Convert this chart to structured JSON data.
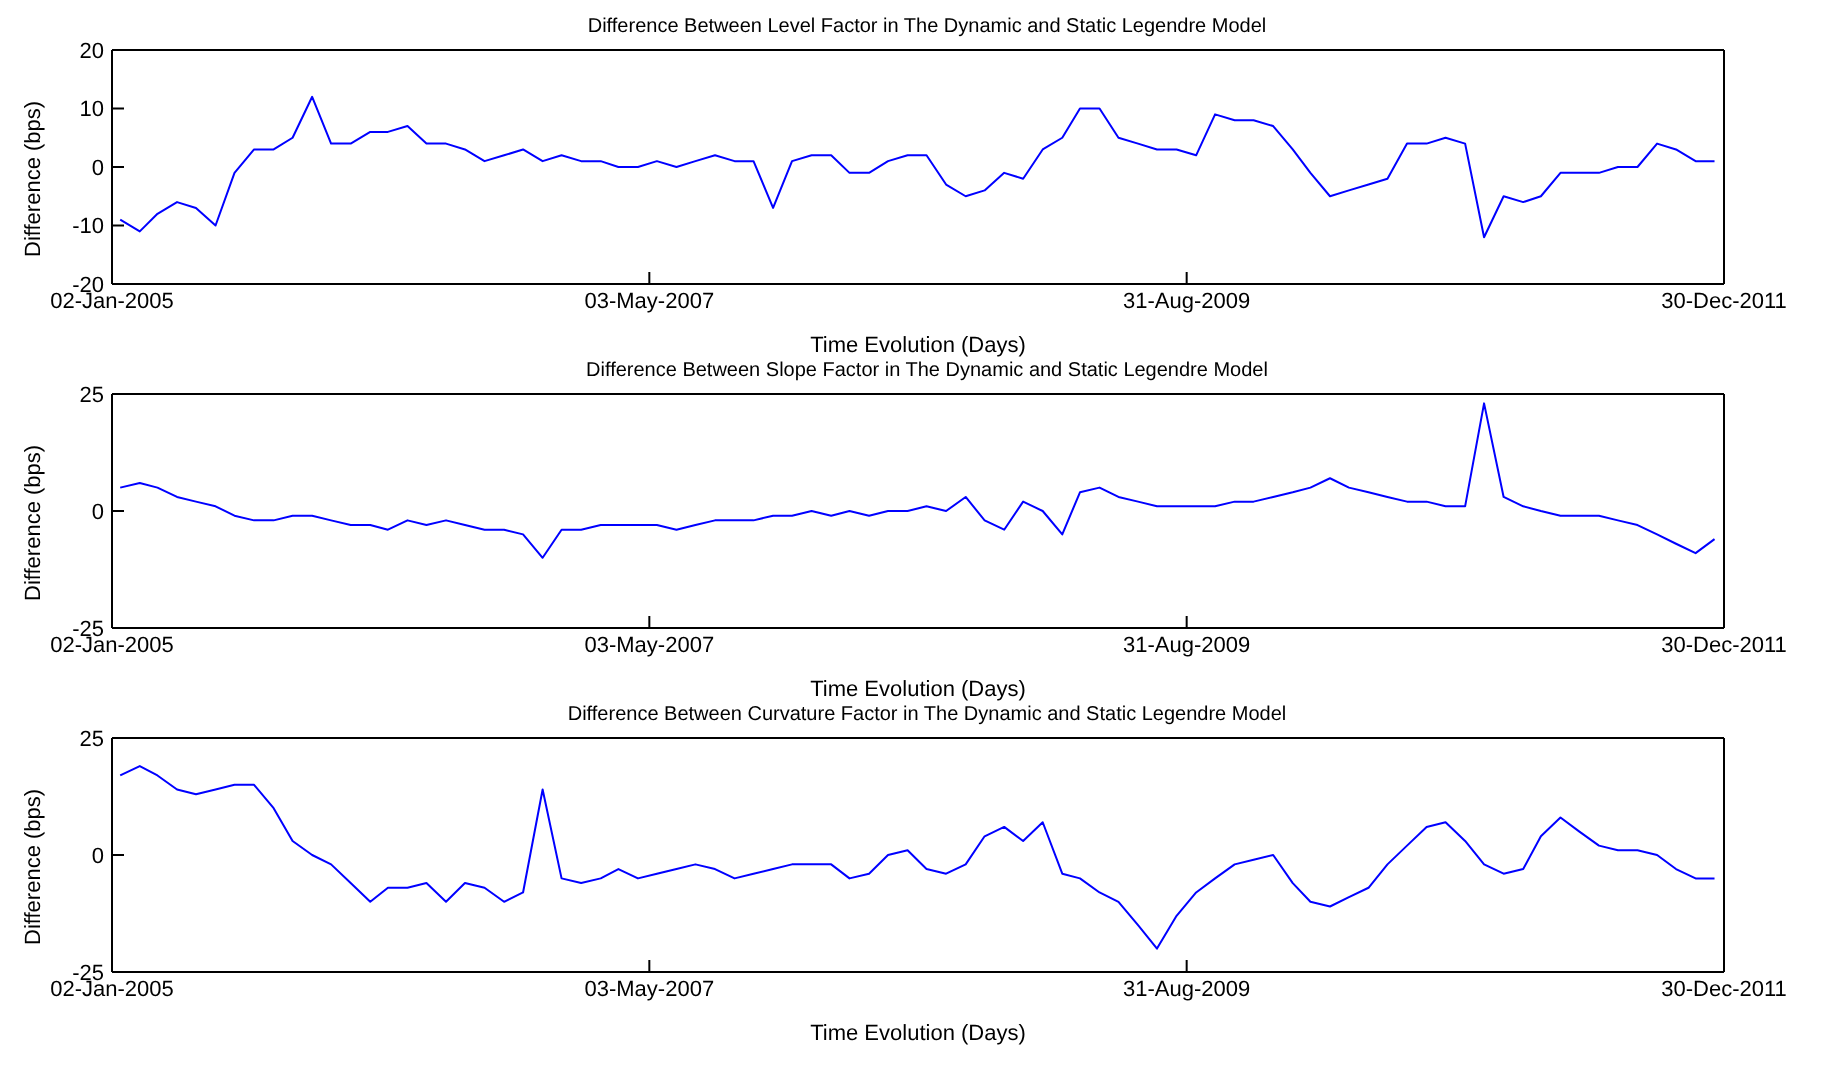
{
  "chart_data": [
    {
      "type": "line",
      "title": "Difference Between Level Factor in The Dynamic and Static Legendre Model",
      "xlabel": "Time Evolution (Days)",
      "ylabel": "Difference (bps)",
      "grid": false,
      "legend": false,
      "marker": "none",
      "line_style": "solid",
      "x": [
        "2005-01-15",
        "2005-02-15",
        "2005-03-15",
        "2005-04-15",
        "2005-05-15",
        "2005-06-15",
        "2005-07-15",
        "2005-08-15",
        "2005-09-15",
        "2005-10-15",
        "2005-11-15",
        "2005-12-15",
        "2006-01-15",
        "2006-02-15",
        "2006-03-15",
        "2006-04-15",
        "2006-05-15",
        "2006-06-15",
        "2006-07-15",
        "2006-08-15",
        "2006-09-15",
        "2006-10-15",
        "2006-11-15",
        "2006-12-15",
        "2007-01-15",
        "2007-02-15",
        "2007-03-15",
        "2007-04-15",
        "2007-05-15",
        "2007-06-15",
        "2007-07-15",
        "2007-08-15",
        "2007-09-15",
        "2007-10-15",
        "2007-11-15",
        "2007-12-15",
        "2008-01-15",
        "2008-02-15",
        "2008-03-15",
        "2008-04-15",
        "2008-05-15",
        "2008-06-15",
        "2008-07-15",
        "2008-08-15",
        "2008-09-15",
        "2008-10-15",
        "2008-11-15",
        "2008-12-15",
        "2009-01-15",
        "2009-02-15",
        "2009-03-15",
        "2009-04-15",
        "2009-05-15",
        "2009-06-15",
        "2009-07-15",
        "2009-08-15",
        "2009-09-15",
        "2009-10-15",
        "2009-11-15",
        "2009-12-15",
        "2010-01-15",
        "2010-02-15",
        "2010-03-15",
        "2010-04-15",
        "2010-05-15",
        "2010-06-15",
        "2010-07-15",
        "2010-08-15",
        "2010-09-15",
        "2010-10-15",
        "2010-11-15",
        "2010-12-15",
        "2011-01-15",
        "2011-02-15",
        "2011-03-15",
        "2011-04-15",
        "2011-05-15",
        "2011-06-15",
        "2011-07-15",
        "2011-08-15",
        "2011-09-15",
        "2011-10-15",
        "2011-11-15",
        "2011-12-15"
      ],
      "series": [
        {
          "color": "#0000ff",
          "values": [
            -9,
            -11,
            -8,
            -6,
            -7,
            -10,
            -1,
            3,
            3,
            5,
            12,
            4,
            4,
            6,
            6,
            7,
            4,
            4,
            3,
            1,
            2,
            3,
            1,
            2,
            1,
            1,
            0,
            0,
            1,
            0,
            1,
            2,
            1,
            1,
            -7,
            1,
            2,
            2,
            -1,
            -1,
            1,
            2,
            2,
            -3,
            -5,
            -4,
            -1,
            -2,
            3,
            5,
            10,
            10,
            5,
            4,
            3,
            3,
            2,
            9,
            8,
            8,
            7,
            3,
            -1,
            -5,
            -4,
            -3,
            -2,
            4,
            4,
            5,
            4,
            -12,
            -5,
            -6,
            -5,
            -1,
            -1,
            -1,
            0,
            0,
            4,
            3,
            1,
            1
          ]
        }
      ],
      "xlim": [
        "2005-01-02",
        "2011-12-30"
      ],
      "xticks": [
        {
          "value": "2005-01-02",
          "label": "02-Jan-2005"
        },
        {
          "value": "2007-05-03",
          "label": "03-May-2007"
        },
        {
          "value": "2009-08-31",
          "label": "31-Aug-2009"
        },
        {
          "value": "2011-12-30",
          "label": "30-Dec-2011"
        }
      ],
      "ylim": [
        -20,
        20
      ],
      "yticks": [
        -20,
        -10,
        0,
        10,
        20
      ]
    },
    {
      "type": "line",
      "title": "Difference Between Slope Factor in The Dynamic and Static Legendre Model",
      "xlabel": "Time Evolution (Days)",
      "ylabel": "Difference (bps)",
      "grid": false,
      "legend": false,
      "marker": "none",
      "line_style": "solid",
      "x": [
        "2005-01-15",
        "2005-02-15",
        "2005-03-15",
        "2005-04-15",
        "2005-05-15",
        "2005-06-15",
        "2005-07-15",
        "2005-08-15",
        "2005-09-15",
        "2005-10-15",
        "2005-11-15",
        "2005-12-15",
        "2006-01-15",
        "2006-02-15",
        "2006-03-15",
        "2006-04-15",
        "2006-05-15",
        "2006-06-15",
        "2006-07-15",
        "2006-08-15",
        "2006-09-15",
        "2006-10-15",
        "2006-11-15",
        "2006-12-15",
        "2007-01-15",
        "2007-02-15",
        "2007-03-15",
        "2007-04-15",
        "2007-05-15",
        "2007-06-15",
        "2007-07-15",
        "2007-08-15",
        "2007-09-15",
        "2007-10-15",
        "2007-11-15",
        "2007-12-15",
        "2008-01-15",
        "2008-02-15",
        "2008-03-15",
        "2008-04-15",
        "2008-05-15",
        "2008-06-15",
        "2008-07-15",
        "2008-08-15",
        "2008-09-15",
        "2008-10-15",
        "2008-11-15",
        "2008-12-15",
        "2009-01-15",
        "2009-02-15",
        "2009-03-15",
        "2009-04-15",
        "2009-05-15",
        "2009-06-15",
        "2009-07-15",
        "2009-08-15",
        "2009-09-15",
        "2009-10-15",
        "2009-11-15",
        "2009-12-15",
        "2010-01-15",
        "2010-02-15",
        "2010-03-15",
        "2010-04-15",
        "2010-05-15",
        "2010-06-15",
        "2010-07-15",
        "2010-08-15",
        "2010-09-15",
        "2010-10-15",
        "2010-11-15",
        "2010-12-15",
        "2011-01-15",
        "2011-02-15",
        "2011-03-15",
        "2011-04-15",
        "2011-05-15",
        "2011-06-15",
        "2011-07-15",
        "2011-08-15",
        "2011-09-15",
        "2011-10-15",
        "2011-11-15",
        "2011-12-15"
      ],
      "series": [
        {
          "color": "#0000ff",
          "values": [
            5,
            6,
            5,
            3,
            2,
            1,
            -1,
            -2,
            -2,
            -1,
            -1,
            -2,
            -3,
            -3,
            -4,
            -2,
            -3,
            -2,
            -3,
            -4,
            -4,
            -5,
            -10,
            -4,
            -4,
            -3,
            -3,
            -3,
            -3,
            -4,
            -3,
            -2,
            -2,
            -2,
            -1,
            -1,
            0,
            -1,
            0,
            -1,
            0,
            0,
            1,
            0,
            3,
            -2,
            -4,
            2,
            0,
            -5,
            4,
            5,
            3,
            2,
            1,
            1,
            1,
            1,
            2,
            2,
            3,
            4,
            5,
            7,
            5,
            4,
            3,
            2,
            2,
            1,
            1,
            23,
            3,
            1,
            0,
            -1,
            -1,
            -1,
            -2,
            -3,
            -5,
            -7,
            -9,
            -6
          ]
        }
      ],
      "xlim": [
        "2005-01-02",
        "2011-12-30"
      ],
      "xticks": [
        {
          "value": "2005-01-02",
          "label": "02-Jan-2005"
        },
        {
          "value": "2007-05-03",
          "label": "03-May-2007"
        },
        {
          "value": "2009-08-31",
          "label": "31-Aug-2009"
        },
        {
          "value": "2011-12-30",
          "label": "30-Dec-2011"
        }
      ],
      "ylim": [
        -25,
        25
      ],
      "yticks": [
        -25,
        0,
        25
      ]
    },
    {
      "type": "line",
      "title": "Difference Between Curvature Factor in The Dynamic and Static Legendre Model",
      "xlabel": "Time Evolution (Days)",
      "ylabel": "Difference (bps)",
      "grid": false,
      "legend": false,
      "marker": "none",
      "line_style": "solid",
      "x": [
        "2005-01-15",
        "2005-02-15",
        "2005-03-15",
        "2005-04-15",
        "2005-05-15",
        "2005-06-15",
        "2005-07-15",
        "2005-08-15",
        "2005-09-15",
        "2005-10-15",
        "2005-11-15",
        "2005-12-15",
        "2006-01-15",
        "2006-02-15",
        "2006-03-15",
        "2006-04-15",
        "2006-05-15",
        "2006-06-15",
        "2006-07-15",
        "2006-08-15",
        "2006-09-15",
        "2006-10-15",
        "2006-11-15",
        "2006-12-15",
        "2007-01-15",
        "2007-02-15",
        "2007-03-15",
        "2007-04-15",
        "2007-05-15",
        "2007-06-15",
        "2007-07-15",
        "2007-08-15",
        "2007-09-15",
        "2007-10-15",
        "2007-11-15",
        "2007-12-15",
        "2008-01-15",
        "2008-02-15",
        "2008-03-15",
        "2008-04-15",
        "2008-05-15",
        "2008-06-15",
        "2008-07-15",
        "2008-08-15",
        "2008-09-15",
        "2008-10-15",
        "2008-11-15",
        "2008-12-15",
        "2009-01-15",
        "2009-02-15",
        "2009-03-15",
        "2009-04-15",
        "2009-05-15",
        "2009-06-15",
        "2009-07-15",
        "2009-08-15",
        "2009-09-15",
        "2009-10-15",
        "2009-11-15",
        "2009-12-15",
        "2010-01-15",
        "2010-02-15",
        "2010-03-15",
        "2010-04-15",
        "2010-05-15",
        "2010-06-15",
        "2010-07-15",
        "2010-08-15",
        "2010-09-15",
        "2010-10-15",
        "2010-11-15",
        "2010-12-15",
        "2011-01-15",
        "2011-02-15",
        "2011-03-15",
        "2011-04-15",
        "2011-05-15",
        "2011-06-15",
        "2011-07-15",
        "2011-08-15",
        "2011-09-15",
        "2011-10-15",
        "2011-11-15",
        "2011-12-15"
      ],
      "series": [
        {
          "color": "#0000ff",
          "values": [
            17,
            19,
            17,
            14,
            13,
            14,
            15,
            15,
            10,
            3,
            0,
            -2,
            -6,
            -10,
            -7,
            -7,
            -6,
            -10,
            -6,
            -7,
            -10,
            -8,
            14,
            -5,
            -6,
            -5,
            -3,
            -5,
            -4,
            -3,
            -2,
            -3,
            -5,
            -4,
            -3,
            -2,
            -2,
            -2,
            -5,
            -4,
            0,
            1,
            -3,
            -4,
            -2,
            4,
            6,
            3,
            7,
            -4,
            -5,
            -8,
            -10,
            -15,
            -20,
            -13,
            -8,
            -5,
            -2,
            -1,
            0,
            -6,
            -10,
            -11,
            -9,
            -7,
            -2,
            2,
            6,
            7,
            3,
            -2,
            -4,
            -3,
            4,
            8,
            5,
            2,
            1,
            1,
            0,
            -3,
            -5,
            -5
          ]
        }
      ],
      "xlim": [
        "2005-01-02",
        "2011-12-30"
      ],
      "xticks": [
        {
          "value": "2005-01-02",
          "label": "02-Jan-2005"
        },
        {
          "value": "2007-05-03",
          "label": "03-May-2007"
        },
        {
          "value": "2009-08-31",
          "label": "31-Aug-2009"
        },
        {
          "value": "2011-12-30",
          "label": "30-Dec-2011"
        }
      ],
      "ylim": [
        -25,
        25
      ],
      "yticks": [
        -25,
        0,
        25
      ]
    }
  ]
}
